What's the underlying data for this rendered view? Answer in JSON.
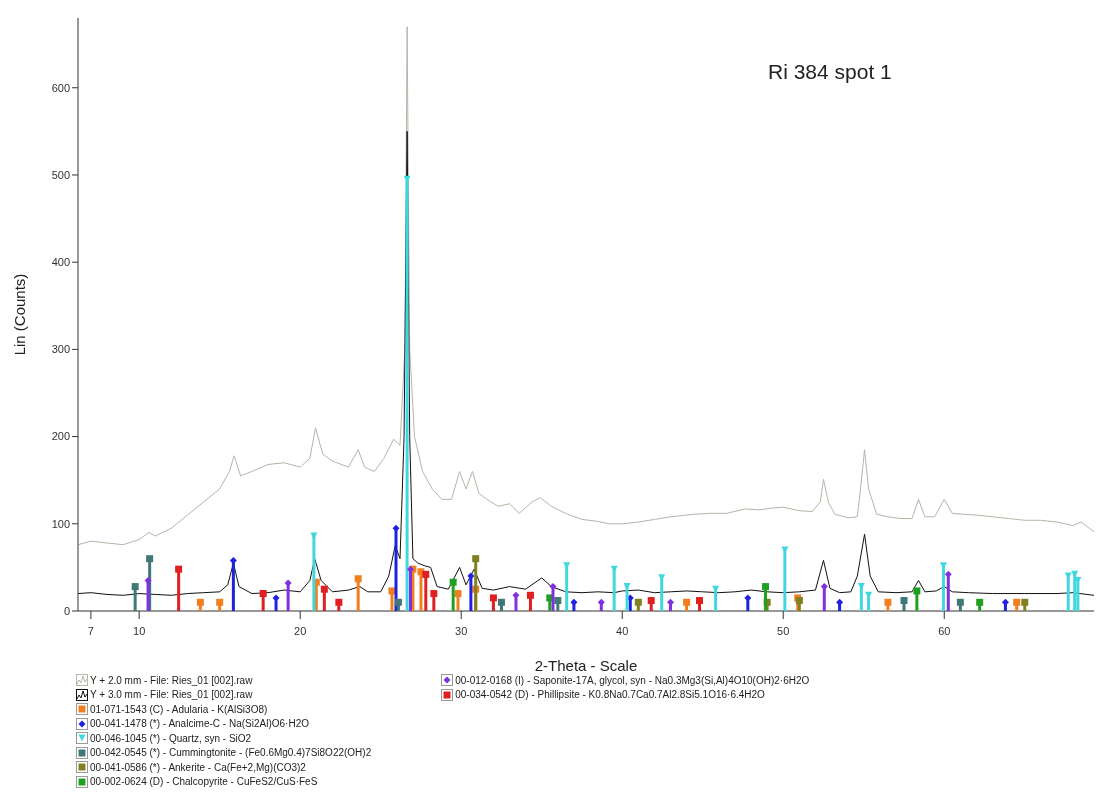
{
  "chart_data": {
    "type": "line",
    "title": "Ri 384 spot 1",
    "xlabel": "2-Theta - Scale",
    "ylabel": "Lin (Counts)",
    "xlim": [
      6.2,
      69.3
    ],
    "ylim": [
      0,
      680
    ],
    "xticks": [
      7,
      10,
      20,
      30,
      40,
      50,
      60
    ],
    "yticks": [
      0,
      100,
      200,
      300,
      400,
      500,
      600
    ],
    "legend": "bottom",
    "series": [
      {
        "name": "Y + 2.0 mm - File: Ries_01 [002].raw",
        "color": "#b8b4a8",
        "marker": "none",
        "x": [
          6.2,
          7,
          8,
          9,
          10,
          10.6,
          11,
          12,
          13,
          14,
          15,
          15.6,
          15.9,
          16.3,
          17,
          18,
          19,
          20,
          20.6,
          20.95,
          21.4,
          22,
          23,
          23.6,
          24,
          24.6,
          25.2,
          25.8,
          26.2,
          26.5,
          26.64,
          26.8,
          27.1,
          27.6,
          28.2,
          28.8,
          29.4,
          29.9,
          30.3,
          30.7,
          31.1,
          31.6,
          32.3,
          33,
          33.6,
          34.4,
          34.9,
          35.6,
          36.6,
          37.5,
          38.4,
          39.2,
          40,
          41,
          42,
          43,
          44.5,
          45.5,
          46.5,
          47.6,
          48.5,
          49.3,
          50,
          51,
          51.8,
          52.3,
          52.5,
          52.8,
          53.2,
          54,
          54.6,
          54.8,
          55.05,
          55.3,
          55.8,
          56.5,
          57.3,
          58,
          58.4,
          58.8,
          59.4,
          60,
          60.5,
          61.1,
          62,
          63,
          64,
          65,
          66,
          67,
          68,
          68.5,
          69,
          69.3
        ],
        "values": [
          76,
          80,
          78,
          76,
          82,
          90,
          86,
          95,
          110,
          125,
          140,
          160,
          178,
          155,
          160,
          168,
          170,
          165,
          175,
          210,
          180,
          172,
          165,
          185,
          165,
          160,
          175,
          197,
          190,
          300,
          670,
          300,
          200,
          160,
          140,
          128,
          128,
          160,
          140,
          160,
          135,
          128,
          120,
          123,
          112,
          125,
          130,
          120,
          111,
          105,
          103,
          100,
          100,
          102,
          105,
          108,
          111,
          112,
          112,
          117,
          116,
          118,
          119,
          115,
          114,
          125,
          151,
          125,
          111,
          107,
          108,
          140,
          185,
          140,
          111,
          108,
          106,
          106,
          128,
          108,
          108,
          128,
          112,
          111,
          110,
          108,
          106,
          104,
          104,
          102,
          98,
          102,
          95,
          91
        ]
      },
      {
        "name": "Y + 3.0 mm - File: Ries_01 [002].raw",
        "color": "#111111",
        "marker": "none",
        "x": [
          6.2,
          7,
          8,
          9,
          10,
          11,
          12,
          13,
          14,
          15,
          15.5,
          15.85,
          16.2,
          17,
          18,
          19,
          20,
          20.6,
          20.9,
          21.3,
          22,
          23,
          23.7,
          24.2,
          25,
          25.5,
          25.9,
          26.2,
          26.45,
          26.64,
          26.8,
          27,
          27.3,
          27.7,
          28.1,
          28.5,
          29.2,
          29.9,
          30.3,
          30.8,
          31.3,
          32,
          33,
          34,
          35,
          35.6,
          36.5,
          37.5,
          38.5,
          39.5,
          40,
          41,
          42,
          43,
          44,
          45,
          46,
          47,
          48,
          49,
          50,
          51,
          52,
          52.5,
          52.9,
          53.5,
          54.2,
          54.6,
          55.05,
          55.4,
          55.9,
          57,
          58,
          58.4,
          58.8,
          59.5,
          60,
          60.5,
          61.5,
          63,
          65,
          67,
          68,
          69.3
        ],
        "values": [
          20,
          21,
          19,
          18,
          20,
          19,
          18,
          20,
          21,
          22,
          30,
          55,
          28,
          20,
          21,
          24,
          22,
          35,
          60,
          35,
          22,
          24,
          28,
          22,
          22,
          40,
          75,
          60,
          200,
          550,
          200,
          60,
          55,
          52,
          50,
          28,
          25,
          50,
          30,
          48,
          26,
          24,
          28,
          25,
          38,
          28,
          22,
          21,
          22,
          21,
          23,
          24,
          21,
          22,
          23,
          22,
          21,
          22,
          24,
          22,
          21,
          22,
          24,
          58,
          26,
          21,
          22,
          40,
          88,
          40,
          22,
          21,
          22,
          35,
          22,
          23,
          28,
          22,
          21,
          20,
          20,
          20,
          21,
          18
        ]
      },
      {
        "name": "01-071-1543 (C) - Adularia - K(AlSi3O8)",
        "type": "lollipop",
        "color": "#f07f20",
        "marker": "square",
        "x": [
          13.8,
          15.0,
          21.0,
          23.6,
          25.7,
          27.0,
          27.5,
          29.8,
          30.9,
          44.0,
          50.9,
          56.5,
          64.5
        ],
        "values": [
          10,
          10,
          33,
          37,
          23,
          48,
          45,
          20,
          25,
          10,
          15,
          10,
          10
        ]
      },
      {
        "name": "00-041-1478 (*) - Analcime-C - Na(Si2Al)O6·H2O",
        "type": "lollipop",
        "color": "#2020e0",
        "marker": "diamond",
        "x": [
          15.85,
          18.5,
          25.95,
          30.6,
          37.0,
          40.5,
          47.8,
          53.5,
          63.8
        ],
        "values": [
          58,
          15,
          95,
          40,
          10,
          15,
          15,
          10,
          10
        ]
      },
      {
        "name": "00-046-1045 (*) - Quartz, syn - SiO2",
        "type": "lollipop",
        "color": "#40d8e0",
        "marker": "triangle",
        "x": [
          20.85,
          26.64,
          36.55,
          39.5,
          40.3,
          42.45,
          45.8,
          50.1,
          54.85,
          55.3,
          59.95,
          67.7,
          68.1,
          68.3
        ],
        "values": [
          86,
          495,
          52,
          48,
          28,
          38,
          25,
          70,
          28,
          18,
          52,
          40,
          42,
          35
        ]
      },
      {
        "name": "00-042-0545 (*) - Cummingtonite - (Fe0.6Mg0.4)7Si8O22(OH)2",
        "type": "lollipop",
        "color": "#407878",
        "marker": "square",
        "x": [
          9.75,
          10.65,
          26.1,
          32.5,
          36.0,
          57.5,
          61.0
        ],
        "values": [
          28,
          60,
          10,
          10,
          12,
          12,
          10
        ]
      },
      {
        "name": "00-041-0586 (*) - Ankerite - Ca(Fe+2,Mg)(CO3)2",
        "type": "lollipop",
        "color": "#808020",
        "marker": "square",
        "x": [
          30.9,
          41.0,
          49.0,
          51.0,
          65.0
        ],
        "values": [
          60,
          10,
          10,
          12,
          10
        ]
      },
      {
        "name": "00-002-0624 (D) - Chalcopyrite - CuFeS2/CuS·FeS",
        "type": "lollipop",
        "color": "#20a020",
        "marker": "square",
        "x": [
          29.5,
          35.5,
          48.9,
          58.3,
          62.2
        ],
        "values": [
          33,
          15,
          28,
          23,
          10
        ]
      },
      {
        "name": "00-012-0168 (I) - Saponite-17A, glycol, syn - Na0.3Mg3(Si,Al)4O10(OH)2·6H2O",
        "type": "lollipop",
        "color": "#8030e0",
        "marker": "diamond",
        "x": [
          10.55,
          19.25,
          26.85,
          33.4,
          35.7,
          38.7,
          43.0,
          52.55,
          60.25
        ],
        "values": [
          35,
          32,
          48,
          18,
          28,
          10,
          10,
          28,
          42
        ]
      },
      {
        "name": "00-034-0542 (D) - Phillipsite - K0.8Na0.7Ca0.7Al2.8Si5.1O16·6.4H2O",
        "type": "lollipop",
        "color": "#e02020",
        "marker": "square",
        "x": [
          12.45,
          17.7,
          21.5,
          22.4,
          27.8,
          28.3,
          32.0,
          34.3,
          41.8,
          44.8
        ],
        "values": [
          48,
          20,
          25,
          10,
          42,
          20,
          15,
          18,
          12,
          12
        ]
      }
    ]
  }
}
